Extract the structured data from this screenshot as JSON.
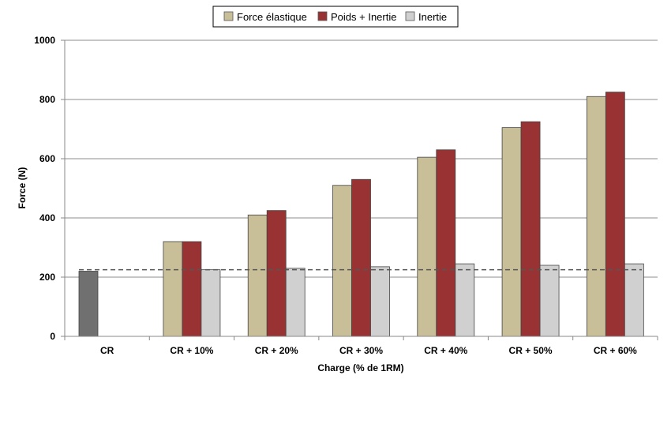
{
  "chart_data": {
    "type": "bar",
    "title": "",
    "xlabel": "Charge (% de 1RM)",
    "ylabel": "Force (N)",
    "ylim": [
      0,
      1000
    ],
    "yticks": [
      0,
      200,
      400,
      600,
      800,
      1000
    ],
    "grid": true,
    "legend_position": "top-center",
    "categories": [
      "CR",
      "CR + 10%",
      "CR + 20%",
      "CR + 30%",
      "CR + 40%",
      "CR + 50%",
      "CR + 60%"
    ],
    "baseline": {
      "category": "CR",
      "value": 220,
      "color": "#707070"
    },
    "reference_line": {
      "value": 225,
      "style": "dashed",
      "color": "#555555"
    },
    "series": [
      {
        "name": "Force élastique",
        "color": "#c8bf99",
        "values": [
          null,
          320,
          410,
          510,
          605,
          705,
          810
        ]
      },
      {
        "name": "Poids + Inertie",
        "color": "#993333",
        "values": [
          null,
          320,
          425,
          530,
          630,
          725,
          825
        ]
      },
      {
        "name": "Inertie",
        "color": "#d0d0d0",
        "values": [
          null,
          225,
          230,
          235,
          245,
          240,
          245
        ]
      }
    ]
  }
}
